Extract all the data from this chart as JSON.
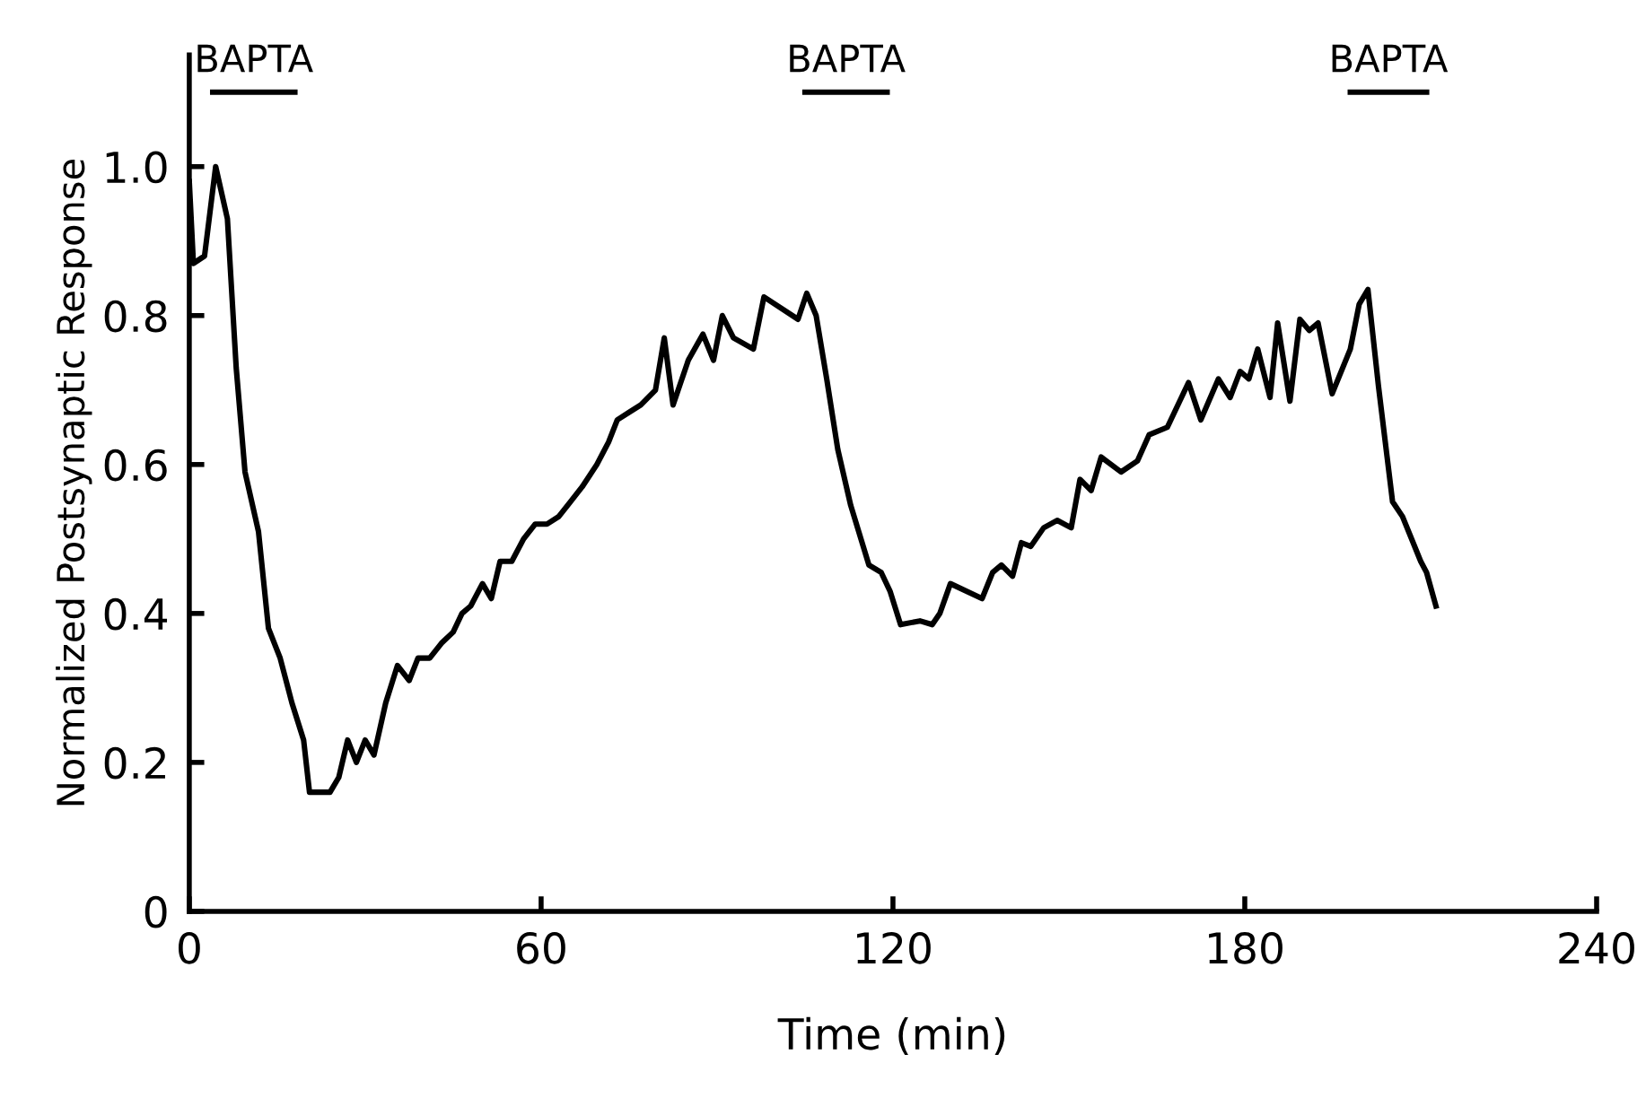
{
  "chart_data": {
    "type": "line",
    "xlabel": "Time (min)",
    "ylabel": "Normalized Postsynaptic Response",
    "xlim": [
      0,
      240
    ],
    "xticks": [
      0,
      60,
      120,
      180,
      240
    ],
    "ylim": [
      0,
      1.15
    ],
    "yticks": [
      0,
      {
        "value": 0.2,
        "label": "0.2"
      },
      {
        "value": 0.4,
        "label": "0.4"
      },
      {
        "value": 0.6,
        "label": "0.6"
      },
      {
        "value": 0.8,
        "label": "0.8"
      },
      {
        "value": 1.0,
        "label": "1.0"
      }
    ],
    "grid": false,
    "marker": "none",
    "line_style": "solid",
    "series": [
      {
        "name": "BAPTA",
        "color": "#000000",
        "x": [
          4,
          18
        ],
        "values": [
          1.1,
          1.1
        ]
      },
      {
        "name": "BAPTA",
        "color": "#000000",
        "x": [
          105,
          119
        ],
        "values": [
          1.1,
          1.1
        ]
      },
      {
        "name": "BAPTA",
        "color": "#000000",
        "x": [
          198,
          211
        ],
        "values": [
          1.1,
          1.1
        ]
      },
      {
        "color": "#000000",
        "x": [
          0,
          0.7,
          2.6,
          4.5,
          6.5,
          8,
          9.5,
          11.8,
          13.5,
          15.5,
          17.5,
          19.5,
          20.5,
          24,
          25.5,
          27,
          28.5,
          30,
          31.5,
          33.5,
          35.5,
          37.5,
          39,
          41,
          43,
          45,
          46.5,
          48,
          50,
          51.5,
          53,
          55,
          57,
          59,
          61,
          63,
          65,
          67,
          69.5,
          71.5,
          73,
          75,
          77,
          79.5,
          81,
          82.5,
          85.1,
          87.6,
          89.4,
          90.9,
          92.8,
          96.2,
          98,
          103.8,
          105.3,
          106.9,
          108.7,
          110.6,
          112.8,
          115.9,
          118,
          119.5,
          121.3,
          124.6,
          126.7,
          128,
          129.8,
          135.2,
          137,
          138.5,
          140.4,
          141.9,
          143.5,
          145.7,
          148,
          150.4,
          151.9,
          153.8,
          155.5,
          158.9,
          161.7,
          163.7,
          166.8,
          170.4,
          172.5,
          175.5,
          177.5,
          179.2,
          180.7,
          182.2,
          184.3,
          185.6,
          187.7,
          189.4,
          191,
          192.5,
          194.9,
          198,
          199.5,
          201,
          202.8,
          205.2,
          206.9,
          210,
          211,
          212.6
        ],
        "values": [
          0.98,
          0.87,
          0.88,
          1.0,
          0.93,
          0.73,
          0.59,
          0.51,
          0.38,
          0.34,
          0.28,
          0.23,
          0.16,
          0.16,
          0.18,
          0.23,
          0.2,
          0.23,
          0.21,
          0.28,
          0.33,
          0.31,
          0.34,
          0.34,
          0.36,
          0.375,
          0.4,
          0.41,
          0.44,
          0.42,
          0.47,
          0.47,
          0.5,
          0.52,
          0.52,
          0.53,
          0.55,
          0.57,
          0.6,
          0.63,
          0.66,
          0.67,
          0.68,
          0.7,
          0.77,
          0.68,
          0.74,
          0.775,
          0.74,
          0.8,
          0.77,
          0.755,
          0.825,
          0.795,
          0.83,
          0.8,
          0.715,
          0.62,
          0.545,
          0.465,
          0.455,
          0.43,
          0.385,
          0.39,
          0.385,
          0.4,
          0.44,
          0.42,
          0.455,
          0.465,
          0.45,
          0.495,
          0.49,
          0.515,
          0.525,
          0.515,
          0.58,
          0.565,
          0.61,
          0.59,
          0.605,
          0.64,
          0.65,
          0.71,
          0.66,
          0.715,
          0.69,
          0.725,
          0.715,
          0.755,
          0.69,
          0.79,
          0.685,
          0.795,
          0.78,
          0.79,
          0.695,
          0.755,
          0.815,
          0.835,
          0.705,
          0.55,
          0.53,
          0.47,
          0.455,
          0.41
        ]
      }
    ]
  }
}
